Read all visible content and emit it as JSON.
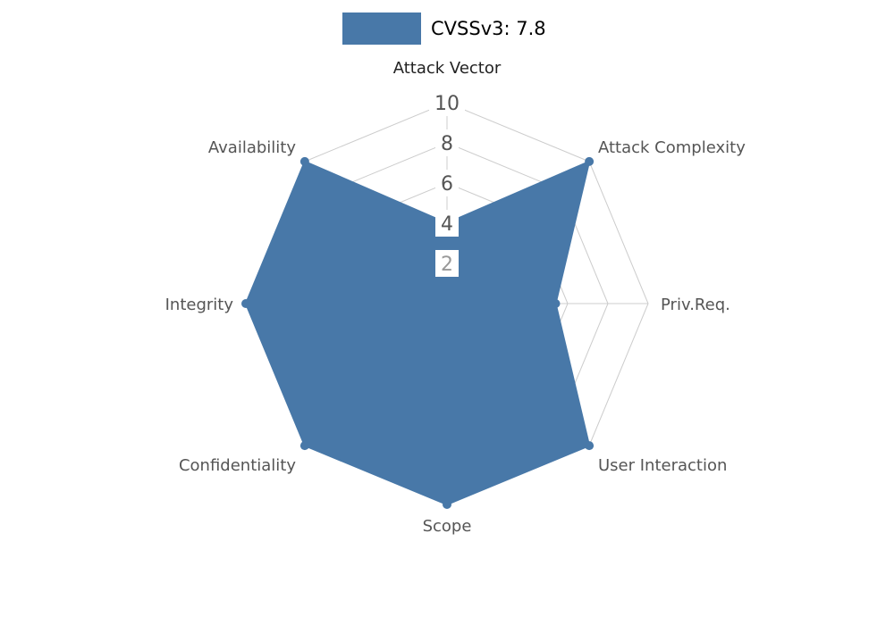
{
  "legend": {
    "label": "CVSSv3: 7.8"
  },
  "colors": {
    "series": "#4878a8",
    "grid": "#cccccc",
    "tick": "#555555",
    "tick_last": "#999999",
    "axis_label_primary": "#222222",
    "axis_label": "#555555",
    "tick_bg": "#ffffff",
    "background": "#ffffff"
  },
  "chart_data": {
    "type": "radar",
    "title": "CVSSv3: 7.8",
    "categories": [
      "Attack Vector",
      "Attack Complexity",
      "Priv.Req.",
      "User Interaction",
      "Scope",
      "Confidentiality",
      "Integrity",
      "Availability"
    ],
    "series": [
      {
        "name": "CVSSv3: 7.8",
        "values": [
          4,
          10,
          5.4,
          10,
          10,
          10,
          10,
          10
        ]
      }
    ],
    "ticks": [
      10,
      8,
      6,
      4,
      2
    ],
    "rlim": [
      0,
      10
    ],
    "grid": true,
    "grid_shape": "polygon",
    "legend_position": "top-center"
  }
}
